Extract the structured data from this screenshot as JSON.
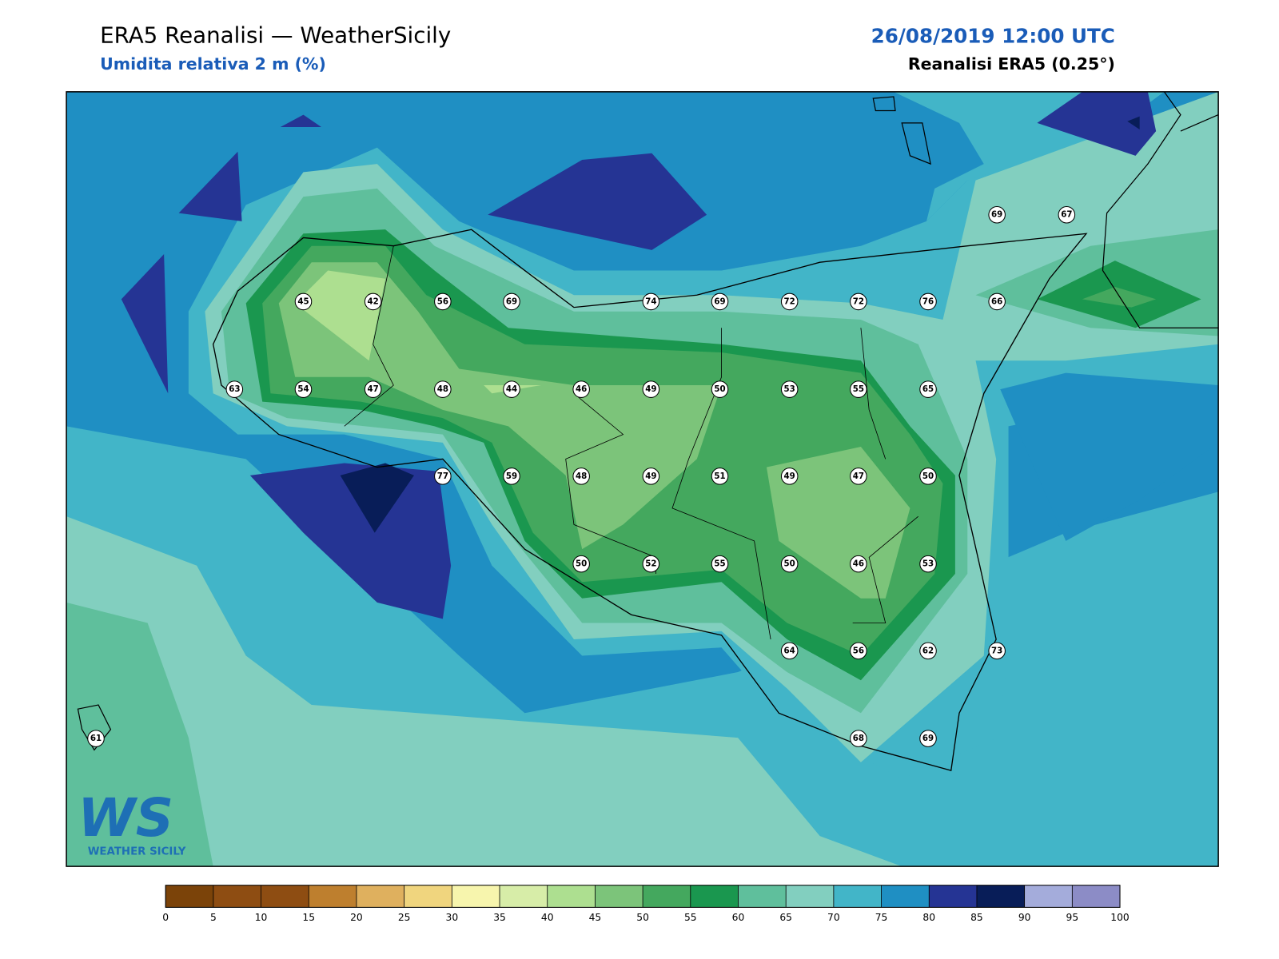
{
  "header": {
    "title": "ERA5 Reanalisi — WeatherSicily",
    "subtitle": "Umidita relativa 2 m (%)",
    "date": "26/08/2019 12:00 UTC",
    "source": "Reanalisi ERA5 (0.25°)"
  },
  "stations": [
    45,
    42,
    56,
    69,
    74,
    69,
    72,
    72,
    76,
    66,
    69,
    67,
    63,
    54,
    47,
    48,
    44,
    46,
    49,
    50,
    53,
    55,
    65,
    77,
    59,
    48,
    49,
    51,
    49,
    47,
    50,
    50,
    52,
    55,
    50,
    46,
    53,
    64,
    56,
    62,
    73,
    61,
    68,
    69
  ],
  "logo": {
    "letters": "WS",
    "name": "WEATHER SICILY"
  },
  "colorbar": {
    "ticks": [
      0,
      5,
      10,
      15,
      20,
      25,
      30,
      35,
      40,
      45,
      50,
      55,
      60,
      65,
      70,
      75,
      80,
      85,
      90,
      95,
      100
    ],
    "colors": [
      "#7b4309",
      "#8e4d12",
      "#8e4d12",
      "#be7f2e",
      "#dfb05e",
      "#f0d57e",
      "#f7f5ad",
      "#d7eda8",
      "#addf90",
      "#7cc47a",
      "#44a85e",
      "#1a974f",
      "#5fbf9c",
      "#82cfbf",
      "#42b5c8",
      "#1f8fc3",
      "#253494",
      "#081d58",
      "#a4acdb",
      "#8c8cc6"
    ]
  }
}
